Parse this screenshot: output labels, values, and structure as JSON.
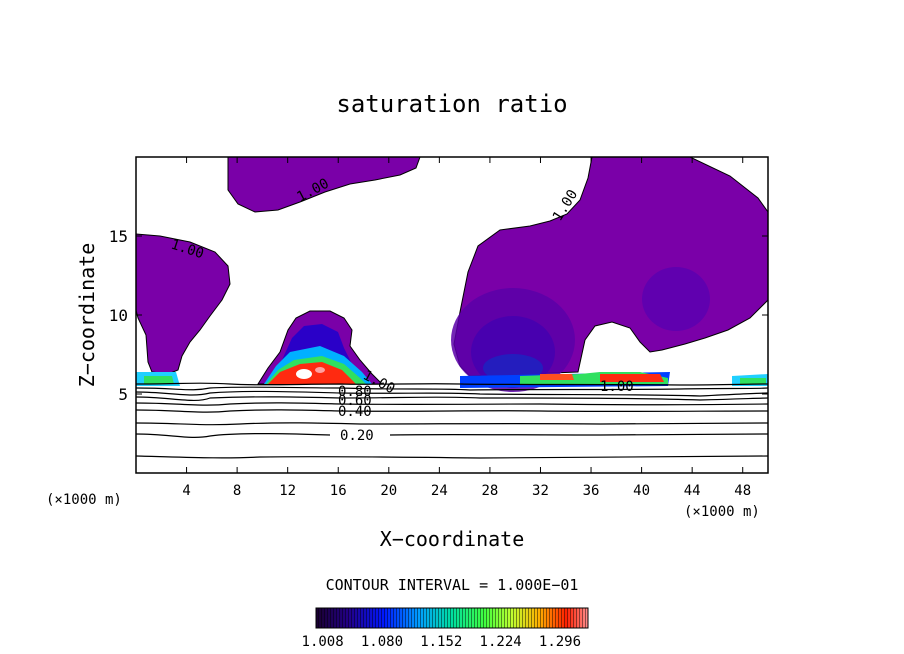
{
  "chart_data": {
    "type": "contour",
    "title": "saturation ratio",
    "xlabel": "X−coordinate",
    "ylabel": "Z−coordinate",
    "x_unit_left": "(×1000 m)",
    "x_unit_right": "(×1000 m)",
    "xlim": [
      0,
      50
    ],
    "ylim": [
      0,
      20
    ],
    "x_ticks": [
      4,
      8,
      12,
      16,
      20,
      24,
      28,
      32,
      36,
      40,
      44,
      48
    ],
    "y_ticks": [
      5,
      10,
      15
    ],
    "contour_interval_label": "CONTOUR INTERVAL = 1.000E−01",
    "contour_labels": [
      "1.00",
      "1.00",
      "1.00",
      "1.00",
      "1.00",
      "0.80",
      "0.60",
      "0.40",
      "0.20"
    ],
    "colorbar_ticks": [
      "1.008",
      "1.080",
      "1.152",
      "1.224",
      "1.296"
    ],
    "colorbar_range": [
      1.0,
      1.33
    ],
    "colors": {
      "supersaturated_fill": "#7a00a8",
      "deep_core": "#4b00a0",
      "contour_line": "#000000",
      "background": "#ffffff"
    }
  }
}
